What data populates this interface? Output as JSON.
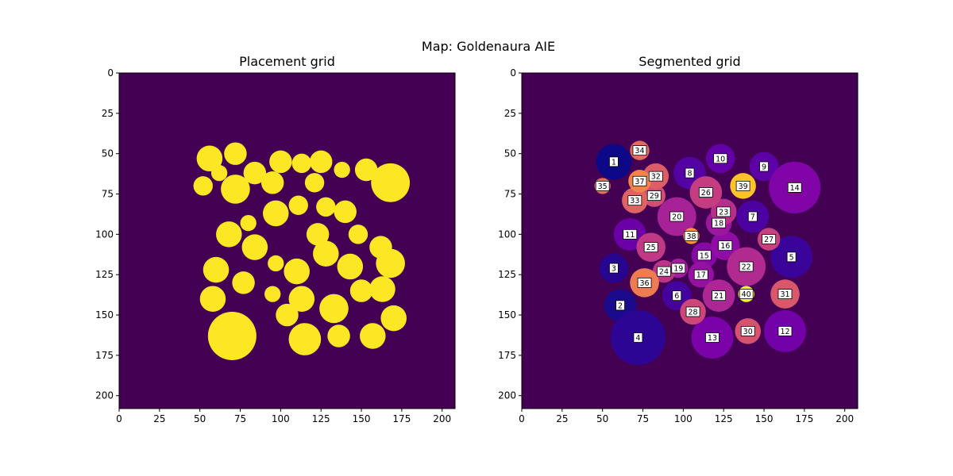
{
  "figure": {
    "suptitle": "Map: Goldenaura AIE"
  },
  "colors": {
    "background": "#440154",
    "placeable": "#fde725",
    "ramp_interior": "#21918c",
    "seg_background": "#440154",
    "seg_ramp": "#20208a"
  },
  "chart_data": [
    {
      "type": "heatmap",
      "title": "Placement grid",
      "xlabel": "",
      "ylabel": "",
      "xlim": [
        0,
        208
      ],
      "ylim": [
        208,
        0
      ],
      "xticks": [
        "0",
        "25",
        "50",
        "75",
        "100",
        "125",
        "150",
        "175",
        "200"
      ],
      "yticks": [
        "0",
        "25",
        "50",
        "75",
        "100",
        "125",
        "150",
        "175",
        "200"
      ],
      "grid": false,
      "regions": [
        {
          "x": 56,
          "y": 53,
          "r": 8
        },
        {
          "x": 72,
          "y": 50,
          "r": 7
        },
        {
          "x": 52,
          "y": 70,
          "r": 6
        },
        {
          "x": 62,
          "y": 62,
          "r": 5
        },
        {
          "x": 72,
          "y": 72,
          "r": 9
        },
        {
          "x": 84,
          "y": 62,
          "r": 7
        },
        {
          "x": 100,
          "y": 55,
          "r": 7
        },
        {
          "x": 95,
          "y": 68,
          "r": 7
        },
        {
          "x": 113,
          "y": 56,
          "r": 6
        },
        {
          "x": 125,
          "y": 55,
          "r": 7
        },
        {
          "x": 121,
          "y": 68,
          "r": 6
        },
        {
          "x": 138,
          "y": 60,
          "r": 5
        },
        {
          "x": 153,
          "y": 60,
          "r": 7
        },
        {
          "x": 168,
          "y": 68,
          "r": 12
        },
        {
          "x": 111,
          "y": 82,
          "r": 6
        },
        {
          "x": 97,
          "y": 87,
          "r": 8
        },
        {
          "x": 128,
          "y": 83,
          "r": 6
        },
        {
          "x": 140,
          "y": 86,
          "r": 7
        },
        {
          "x": 68,
          "y": 100,
          "r": 8
        },
        {
          "x": 80,
          "y": 93,
          "r": 5
        },
        {
          "x": 84,
          "y": 108,
          "r": 8
        },
        {
          "x": 123,
          "y": 100,
          "r": 7
        },
        {
          "x": 148,
          "y": 100,
          "r": 6
        },
        {
          "x": 162,
          "y": 108,
          "r": 7
        },
        {
          "x": 168,
          "y": 118,
          "r": 9
        },
        {
          "x": 60,
          "y": 122,
          "r": 8
        },
        {
          "x": 77,
          "y": 130,
          "r": 7
        },
        {
          "x": 97,
          "y": 118,
          "r": 5
        },
        {
          "x": 110,
          "y": 123,
          "r": 8
        },
        {
          "x": 128,
          "y": 112,
          "r": 8
        },
        {
          "x": 143,
          "y": 120,
          "r": 8
        },
        {
          "x": 113,
          "y": 140,
          "r": 8
        },
        {
          "x": 133,
          "y": 146,
          "r": 9
        },
        {
          "x": 150,
          "y": 135,
          "r": 7
        },
        {
          "x": 163,
          "y": 134,
          "r": 8
        },
        {
          "x": 58,
          "y": 140,
          "r": 8
        },
        {
          "x": 95,
          "y": 137,
          "r": 5
        },
        {
          "x": 104,
          "y": 150,
          "r": 7
        },
        {
          "x": 115,
          "y": 165,
          "r": 10
        },
        {
          "x": 136,
          "y": 163,
          "r": 7
        },
        {
          "x": 157,
          "y": 163,
          "r": 8
        },
        {
          "x": 170,
          "y": 152,
          "r": 8
        },
        {
          "x": 70,
          "y": 163,
          "r": 15
        }
      ]
    },
    {
      "type": "heatmap",
      "title": "Segmented grid",
      "xlabel": "",
      "ylabel": "",
      "xlim": [
        0,
        208
      ],
      "ylim": [
        208,
        0
      ],
      "xticks": [
        "0",
        "25",
        "50",
        "75",
        "100",
        "125",
        "150",
        "175",
        "200"
      ],
      "yticks": [
        "0",
        "25",
        "50",
        "75",
        "100",
        "125",
        "150",
        "175",
        "200"
      ],
      "grid": false,
      "segments": [
        {
          "label": "1",
          "x": 57,
          "y": 55,
          "r": 11,
          "color": "#0d0887"
        },
        {
          "label": "2",
          "x": 61,
          "y": 144,
          "r": 10,
          "color": "#1a0b8c"
        },
        {
          "label": "3",
          "x": 57,
          "y": 121,
          "r": 9,
          "color": "#260591"
        },
        {
          "label": "4",
          "x": 72,
          "y": 164,
          "r": 17,
          "color": "#2c0594"
        },
        {
          "label": "5",
          "x": 167,
          "y": 114,
          "r": 13,
          "color": "#3a049a"
        },
        {
          "label": "6",
          "x": 96,
          "y": 138,
          "r": 9,
          "color": "#45039e"
        },
        {
          "label": "7",
          "x": 143,
          "y": 89,
          "r": 10,
          "color": "#4c02a1"
        },
        {
          "label": "8",
          "x": 104,
          "y": 62,
          "r": 10,
          "color": "#5402a3"
        },
        {
          "label": "9",
          "x": 150,
          "y": 58,
          "r": 9,
          "color": "#5c01a6"
        },
        {
          "label": "10",
          "x": 123,
          "y": 53,
          "r": 9,
          "color": "#6300a7"
        },
        {
          "label": "11",
          "x": 67,
          "y": 100,
          "r": 10,
          "color": "#6c00a8"
        },
        {
          "label": "12",
          "x": 163,
          "y": 160,
          "r": 13,
          "color": "#7201a8"
        },
        {
          "label": "13",
          "x": 118,
          "y": 164,
          "r": 13,
          "color": "#7a02a8"
        },
        {
          "label": "14",
          "x": 169,
          "y": 71,
          "r": 16,
          "color": "#8004a8"
        },
        {
          "label": "15",
          "x": 113,
          "y": 113,
          "r": 8,
          "color": "#8808a6"
        },
        {
          "label": "16",
          "x": 126,
          "y": 107,
          "r": 9,
          "color": "#8f0da4"
        },
        {
          "label": "17",
          "x": 111,
          "y": 125,
          "r": 8,
          "color": "#9511a1"
        },
        {
          "label": "18",
          "x": 122,
          "y": 93,
          "r": 8,
          "color": "#9c179e"
        },
        {
          "label": "19",
          "x": 97,
          "y": 121,
          "r": 6,
          "color": "#a21d9a"
        },
        {
          "label": "20",
          "x": 96,
          "y": 89,
          "r": 12,
          "color": "#a72197"
        },
        {
          "label": "21",
          "x": 122,
          "y": 138,
          "r": 10,
          "color": "#ac2694"
        },
        {
          "label": "22",
          "x": 139,
          "y": 120,
          "r": 12,
          "color": "#b12a90"
        },
        {
          "label": "23",
          "x": 125,
          "y": 86,
          "r": 8,
          "color": "#b6308b"
        },
        {
          "label": "24",
          "x": 88,
          "y": 123,
          "r": 7,
          "color": "#bb3488"
        },
        {
          "label": "25",
          "x": 80,
          "y": 108,
          "r": 9,
          "color": "#bf3984"
        },
        {
          "label": "26",
          "x": 114,
          "y": 74,
          "r": 10,
          "color": "#c33d80"
        },
        {
          "label": "27",
          "x": 153,
          "y": 103,
          "r": 7,
          "color": "#c7427c"
        },
        {
          "label": "28",
          "x": 106,
          "y": 148,
          "r": 8,
          "color": "#cc4778"
        },
        {
          "label": "29",
          "x": 82,
          "y": 76,
          "r": 7,
          "color": "#d04d73"
        },
        {
          "label": "30",
          "x": 140,
          "y": 160,
          "r": 8,
          "color": "#d5536f"
        },
        {
          "label": "31",
          "x": 163,
          "y": 137,
          "r": 9,
          "color": "#d8576b"
        },
        {
          "label": "32",
          "x": 83,
          "y": 64,
          "r": 8,
          "color": "#dc5d66"
        },
        {
          "label": "33",
          "x": 70,
          "y": 79,
          "r": 8,
          "color": "#e06363"
        },
        {
          "label": "34",
          "x": 73,
          "y": 48,
          "r": 6,
          "color": "#e4695e"
        },
        {
          "label": "35",
          "x": 50,
          "y": 70,
          "r": 5,
          "color": "#e76e5b"
        },
        {
          "label": "36",
          "x": 76,
          "y": 130,
          "r": 9,
          "color": "#ee7b51"
        },
        {
          "label": "37",
          "x": 73,
          "y": 67,
          "r": 7,
          "color": "#f2844b"
        },
        {
          "label": "38",
          "x": 105,
          "y": 101,
          "r": 5,
          "color": "#f89540"
        },
        {
          "label": "39",
          "x": 137,
          "y": 70,
          "r": 8,
          "color": "#fdc328"
        },
        {
          "label": "40",
          "x": 139,
          "y": 137,
          "r": 5,
          "color": "#f0f921"
        }
      ]
    }
  ]
}
